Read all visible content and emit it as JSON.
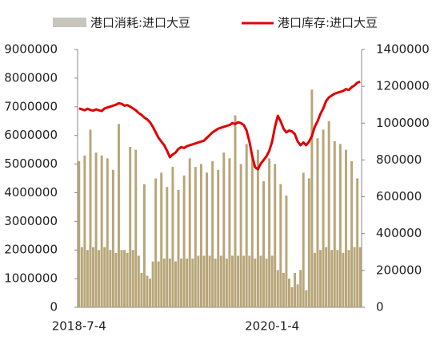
{
  "chart_data": {
    "type": "bar-line",
    "categories": [
      "2018-7-4",
      null,
      null,
      null,
      null,
      null,
      null,
      null,
      null,
      null,
      null,
      null,
      null,
      null,
      null,
      null,
      null,
      null,
      null,
      null,
      null,
      null,
      null,
      null,
      null,
      null,
      null,
      null,
      null,
      null,
      null,
      null,
      null,
      null,
      null,
      null,
      null,
      null,
      null,
      null,
      null,
      null,
      null,
      null,
      null,
      null,
      null,
      null,
      null,
      null,
      null,
      null,
      null,
      null,
      null,
      null,
      null,
      null,
      null,
      null,
      null,
      null,
      null,
      null,
      null,
      null,
      null,
      null,
      "2020-1-4",
      null,
      null,
      null,
      null,
      null,
      null,
      null,
      null,
      null,
      null,
      null,
      null,
      null,
      null,
      null,
      null,
      null,
      null,
      null,
      null,
      null,
      null,
      null,
      null,
      null,
      null,
      null,
      null,
      null,
      null,
      null
    ],
    "series": [
      {
        "name": "港口消耗:进口大豆",
        "color": "#b8a679",
        "values": [
          5100000,
          2100000,
          5300000,
          2000000,
          6200000,
          2100000,
          5400000,
          2000000,
          5300000,
          2100000,
          5200000,
          2000000,
          4800000,
          1900000,
          6400000,
          2000000,
          2000000,
          1900000,
          5600000,
          2000000,
          5500000,
          1800000,
          1200000,
          4300000,
          1100000,
          1000000,
          1600000,
          4500000,
          1600000,
          4700000,
          1700000,
          4200000,
          1700000,
          4900000,
          1600000,
          4100000,
          1700000,
          4600000,
          1700000,
          5200000,
          1700000,
          4900000,
          1800000,
          5000000,
          1800000,
          4700000,
          1800000,
          5100000,
          1700000,
          4800000,
          1800000,
          5400000,
          1700000,
          5200000,
          1800000,
          6700000,
          1800000,
          5000000,
          1800000,
          5700000,
          1800000,
          5200000,
          1700000,
          5500000,
          1800000,
          4400000,
          1700000,
          5200000,
          1800000,
          5000000,
          1300000,
          4300000,
          1200000,
          3900000,
          1000000,
          700000,
          1200000,
          800000,
          1300000,
          4700000,
          600000,
          4500000,
          7600000,
          1900000,
          5900000,
          2000000,
          6200000,
          2100000,
          6500000,
          2000000,
          5800000,
          2000000,
          5700000,
          1900000,
          5500000,
          2000000,
          5100000,
          2100000,
          4500000,
          2100000
        ]
      },
      {
        "name": "港口库存:进口大豆",
        "color": "#e00000",
        "axis": "y2",
        "values": [
          1080000,
          1075000,
          1070000,
          1078000,
          1072000,
          1068000,
          1075000,
          1070000,
          1066000,
          1080000,
          1085000,
          1090000,
          1095000,
          1100000,
          1108000,
          1105000,
          1095000,
          1098000,
          1090000,
          1080000,
          1070000,
          1055000,
          1045000,
          1030000,
          1020000,
          1005000,
          980000,
          950000,
          920000,
          900000,
          880000,
          850000,
          815000,
          830000,
          840000,
          860000,
          870000,
          865000,
          875000,
          880000,
          885000,
          890000,
          895000,
          900000,
          905000,
          920000,
          935000,
          950000,
          960000,
          970000,
          975000,
          980000,
          985000,
          990000,
          1000000,
          995000,
          1005000,
          1000000,
          990000,
          960000,
          900000,
          820000,
          760000,
          750000,
          780000,
          800000,
          820000,
          850000,
          900000,
          980000,
          1040000,
          1010000,
          970000,
          950000,
          960000,
          955000,
          940000,
          900000,
          880000,
          895000,
          880000,
          900000,
          930000,
          980000,
          1010000,
          1050000,
          1080000,
          1120000,
          1140000,
          1150000,
          1160000,
          1165000,
          1170000,
          1175000,
          1185000,
          1180000,
          1195000,
          1205000,
          1220000,
          1225000
        ]
      }
    ],
    "ylim": [
      0,
      9000000
    ],
    "yticks": [
      0,
      1000000,
      2000000,
      3000000,
      4000000,
      5000000,
      6000000,
      7000000,
      8000000,
      9000000
    ],
    "y2lim": [
      0,
      1400000
    ],
    "y2ticks": [
      0,
      200000,
      400000,
      600000,
      800000,
      1000000,
      1200000,
      1400000
    ],
    "grid": false,
    "legend": "top"
  }
}
